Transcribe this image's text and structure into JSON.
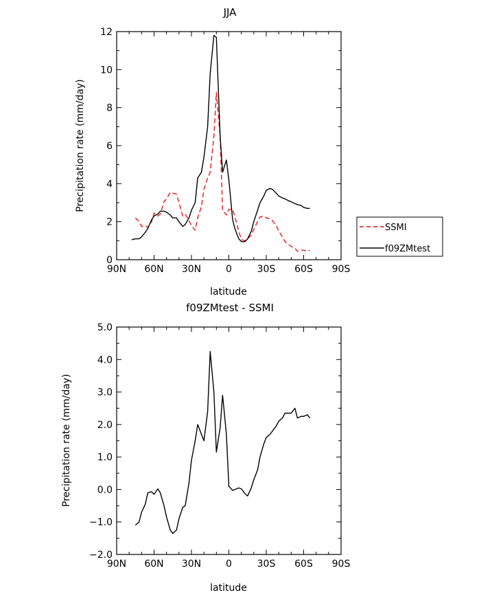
{
  "chart_data": [
    {
      "type": "line",
      "title": "JJA",
      "xlabel": "latitude",
      "ylabel": "Precipitation rate (mm/day)",
      "xlim": [
        90,
        -90
      ],
      "ylim": [
        0,
        12
      ],
      "x_ticks": [
        90,
        60,
        30,
        0,
        -30,
        -60,
        -90
      ],
      "x_tick_labels": [
        "90N",
        "60N",
        "30N",
        "0",
        "30S",
        "60S",
        "90S"
      ],
      "y_ticks": [
        0,
        2,
        4,
        6,
        8,
        10,
        12
      ],
      "y_tick_labels": [
        "0",
        "2",
        "4",
        "6",
        "8",
        "10",
        "12"
      ],
      "legend": {
        "position": "right"
      },
      "series": [
        {
          "name": "SSMI",
          "color": "#e8161a",
          "dash": "dashed",
          "x": [
            75,
            72,
            70,
            67,
            65,
            62,
            60,
            57,
            55,
            52,
            50,
            47,
            45,
            42,
            40,
            37,
            35,
            32,
            30,
            27,
            25,
            22,
            20,
            17,
            15,
            12,
            10,
            7,
            5,
            2,
            0,
            -3,
            -5,
            -8,
            -10,
            -13,
            -15,
            -18,
            -20,
            -23,
            -25,
            -28,
            -30,
            -33,
            -35,
            -38,
            -40,
            -43,
            -45,
            -48,
            -50,
            -53,
            -55,
            -58,
            -60,
            -63,
            -65
          ],
          "y": [
            2.2,
            2.0,
            1.75,
            1.8,
            1.7,
            2.0,
            2.45,
            2.3,
            2.4,
            3.05,
            3.2,
            3.55,
            3.5,
            3.45,
            3.0,
            2.3,
            2.4,
            2.05,
            1.8,
            1.55,
            2.2,
            2.8,
            3.7,
            4.3,
            4.6,
            6.5,
            8.8,
            6.5,
            2.6,
            2.35,
            2.65,
            2.65,
            2.2,
            1.5,
            1.05,
            1.0,
            1.1,
            1.3,
            1.6,
            2.0,
            2.25,
            2.3,
            2.2,
            2.15,
            2.05,
            1.8,
            1.5,
            1.2,
            0.95,
            0.8,
            0.7,
            0.6,
            0.45,
            0.5,
            0.5,
            0.45,
            0.5
          ]
        },
        {
          "name": "f09ZMtest",
          "color": "#000000",
          "dash": "solid",
          "x": [
            78,
            75,
            72,
            70,
            67,
            65,
            62,
            60,
            57,
            55,
            52,
            50,
            47,
            45,
            42,
            40,
            37,
            35,
            32,
            30,
            27,
            25,
            22,
            20,
            17,
            15,
            12,
            10,
            7,
            5,
            2,
            0,
            -3,
            -5,
            -8,
            -10,
            -13,
            -15,
            -18,
            -20,
            -23,
            -25,
            -28,
            -30,
            -33,
            -35,
            -38,
            -40,
            -43,
            -45,
            -48,
            -50,
            -53,
            -55,
            -58,
            -60,
            -63,
            -65
          ],
          "y": [
            1.05,
            1.1,
            1.1,
            1.2,
            1.45,
            1.65,
            2.1,
            2.3,
            2.4,
            2.55,
            2.55,
            2.5,
            2.35,
            2.2,
            2.2,
            2.0,
            1.75,
            1.85,
            2.2,
            2.6,
            3.0,
            4.3,
            4.6,
            5.4,
            7.0,
            9.8,
            11.8,
            11.7,
            6.5,
            4.6,
            5.25,
            4.2,
            2.1,
            1.6,
            1.1,
            0.95,
            0.95,
            1.1,
            1.5,
            2.0,
            2.6,
            3.0,
            3.35,
            3.65,
            3.75,
            3.7,
            3.5,
            3.35,
            3.25,
            3.2,
            3.1,
            3.05,
            2.95,
            2.9,
            2.85,
            2.75,
            2.7,
            2.7
          ]
        }
      ]
    },
    {
      "type": "line",
      "title": "f09ZMtest - SSMI",
      "xlabel": "latitude",
      "ylabel": "Precipitation rate (mm/day)",
      "xlim": [
        90,
        -90
      ],
      "ylim": [
        -2.0,
        5.0
      ],
      "x_ticks": [
        90,
        60,
        30,
        0,
        -30,
        -60,
        -90
      ],
      "x_tick_labels": [
        "90N",
        "60N",
        "30N",
        "0",
        "30S",
        "60S",
        "90S"
      ],
      "y_ticks": [
        -2,
        -1,
        0,
        1,
        2,
        3,
        4,
        5
      ],
      "y_tick_labels": [
        "−2.0",
        "−1.0",
        "0.0",
        "1.0",
        "2.0",
        "3.0",
        "4.0",
        "5.0"
      ],
      "series": [
        {
          "color": "#000000",
          "dash": "solid",
          "x": [
            75,
            72,
            70,
            67,
            65,
            62,
            60,
            57,
            55,
            52,
            50,
            47,
            45,
            42,
            40,
            37,
            35,
            32,
            30,
            27,
            25,
            22,
            20,
            17,
            15,
            12,
            10,
            7,
            5,
            2,
            0,
            -3,
            -5,
            -8,
            -10,
            -13,
            -15,
            -18,
            -20,
            -23,
            -25,
            -28,
            -30,
            -33,
            -35,
            -38,
            -40,
            -43,
            -45,
            -48,
            -50,
            -53,
            -55,
            -58,
            -60,
            -63,
            -65
          ],
          "y": [
            -1.1,
            -1.0,
            -0.7,
            -0.45,
            -0.1,
            -0.07,
            -0.15,
            0.02,
            -0.1,
            -0.5,
            -0.85,
            -1.25,
            -1.35,
            -1.25,
            -0.9,
            -0.55,
            -0.5,
            0.2,
            0.9,
            1.5,
            2.0,
            1.7,
            1.5,
            2.4,
            4.25,
            3.0,
            1.15,
            1.9,
            2.9,
            1.7,
            0.1,
            -0.03,
            0.0,
            0.05,
            0.02,
            -0.13,
            -0.2,
            0.05,
            0.3,
            0.6,
            1.0,
            1.4,
            1.6,
            1.7,
            1.8,
            1.95,
            2.1,
            2.2,
            2.35,
            2.35,
            2.35,
            2.5,
            2.2,
            2.25,
            2.25,
            2.3,
            2.2
          ]
        }
      ]
    }
  ]
}
